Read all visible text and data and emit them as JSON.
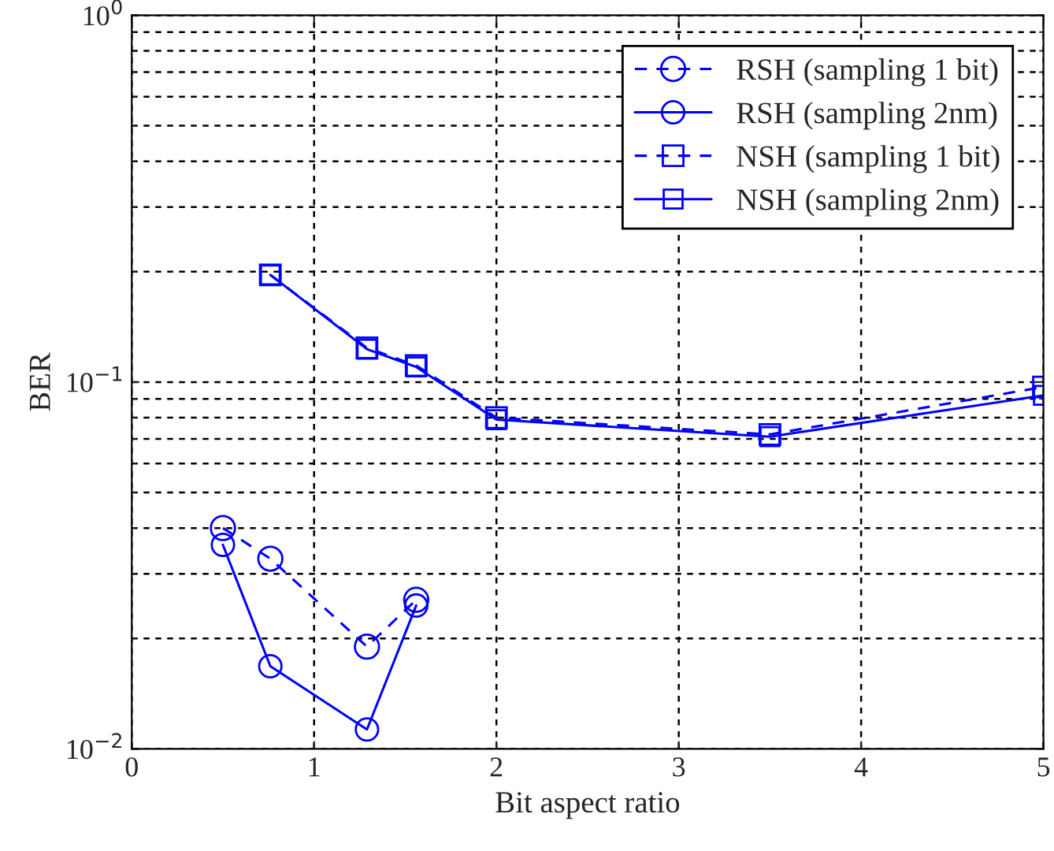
{
  "chart_data": {
    "type": "line",
    "xlabel": "Bit aspect ratio",
    "ylabel": "BER",
    "log": "y",
    "xlim": [
      0,
      5
    ],
    "xticks": [
      0,
      1,
      2,
      3,
      4,
      5
    ],
    "ylim": [
      0.01,
      1
    ],
    "yticks": [
      {
        "value": 0.01,
        "label": "10$^{−2}$"
      },
      {
        "value": 0.1,
        "label": "10$^{−1}$"
      },
      {
        "value": 1,
        "label": "10$^{0}$"
      }
    ],
    "grid": true,
    "legend": "top right",
    "series": [
      {
        "name": "RSH (sampling 1 bit)",
        "color": "#0000ff",
        "marker": "circle",
        "line_style": "dashed",
        "x": [
          0.5,
          0.76,
          1.29,
          1.56
        ],
        "values": [
          0.04,
          0.033,
          0.019,
          0.0255
        ]
      },
      {
        "name": "RSH (sampling 2nm)",
        "color": "#0000ff",
        "marker": "circle",
        "line_style": "solid",
        "x": [
          0.5,
          0.76,
          1.29,
          1.56
        ],
        "values": [
          0.036,
          0.0168,
          0.0113,
          0.0246
        ]
      },
      {
        "name": "NSH (sampling 1 bit)",
        "color": "#0000ff",
        "marker": "square",
        "line_style": "dashed",
        "x": [
          0.76,
          1.29,
          1.56,
          2.0,
          3.5,
          5.0
        ],
        "values": [
          0.196,
          0.124,
          0.111,
          0.08,
          0.072,
          0.097
        ]
      },
      {
        "name": "NSH (sampling 2nm)",
        "color": "#0000ff",
        "marker": "square",
        "line_style": "solid",
        "x": [
          0.76,
          1.29,
          1.56,
          2.0,
          3.5,
          5.0
        ],
        "values": [
          0.196,
          0.123,
          0.11,
          0.079,
          0.071,
          0.092
        ]
      }
    ]
  }
}
